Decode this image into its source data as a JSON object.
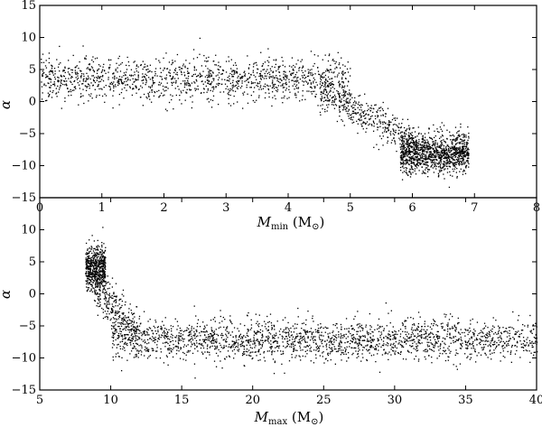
{
  "chart_data": [
    {
      "type": "scatter",
      "title": "",
      "xlabel": "M_min (M_⊙)",
      "ylabel": "α",
      "xlim": [
        0,
        8
      ],
      "ylim": [
        -15,
        15
      ],
      "xticks": [
        "0",
        "1",
        "2",
        "3",
        "4",
        "5",
        "6",
        "7",
        "8"
      ],
      "yticks": [
        "15",
        "10",
        "5",
        "0",
        "−5",
        "−10",
        "−15"
      ],
      "grid": false,
      "legend": "none",
      "marker_color": "#000000",
      "point_count_approx": 3000,
      "density_regions": [
        {
          "x_range": [
            0,
            5
          ],
          "y_center": 3.5,
          "y_spread": 2.5,
          "weight": 0.45
        },
        {
          "x_range": [
            4.5,
            6.0
          ],
          "y_trend": [
            2,
            -6
          ],
          "y_spread": 2.0,
          "weight": 0.15
        },
        {
          "x_range": [
            5.8,
            6.9
          ],
          "y_center": -8,
          "y_spread": 2.2,
          "weight": 0.4
        }
      ]
    },
    {
      "type": "scatter",
      "title": "",
      "xlabel": "M_max (M_⊙)",
      "ylabel": "α",
      "xlim": [
        5,
        40
      ],
      "ylim": [
        -15,
        15
      ],
      "xticks": [
        "5",
        "10",
        "15",
        "20",
        "25",
        "30",
        "35",
        "40"
      ],
      "yticks": [
        "10",
        "5",
        "0",
        "−5",
        "−10",
        "−15"
      ],
      "grid": false,
      "legend": "none",
      "marker_color": "#000000",
      "point_count_approx": 3000,
      "density_regions": [
        {
          "x_range": [
            8.2,
            9.6
          ],
          "y_center": 4,
          "y_spread": 2.5,
          "weight": 0.2
        },
        {
          "x_range": [
            8.8,
            12
          ],
          "y_trend": [
            1,
            -6
          ],
          "y_spread": 2.5,
          "weight": 0.1
        },
        {
          "x_range": [
            10,
            40
          ],
          "y_center": -7,
          "y_spread": 2.3,
          "weight": 0.7
        }
      ]
    }
  ],
  "labels": {
    "top_xlabel_main": "M",
    "top_xlabel_sub": "min",
    "top_xlabel_unit": " (M",
    "top_xlabel_unit_sub": "⊙",
    "top_xlabel_close": ")",
    "bottom_xlabel_main": "M",
    "bottom_xlabel_sub": "max",
    "bottom_xlabel_unit": " (M",
    "bottom_xlabel_unit_sub": "⊙",
    "bottom_xlabel_close": ")",
    "ylabel": "α"
  }
}
